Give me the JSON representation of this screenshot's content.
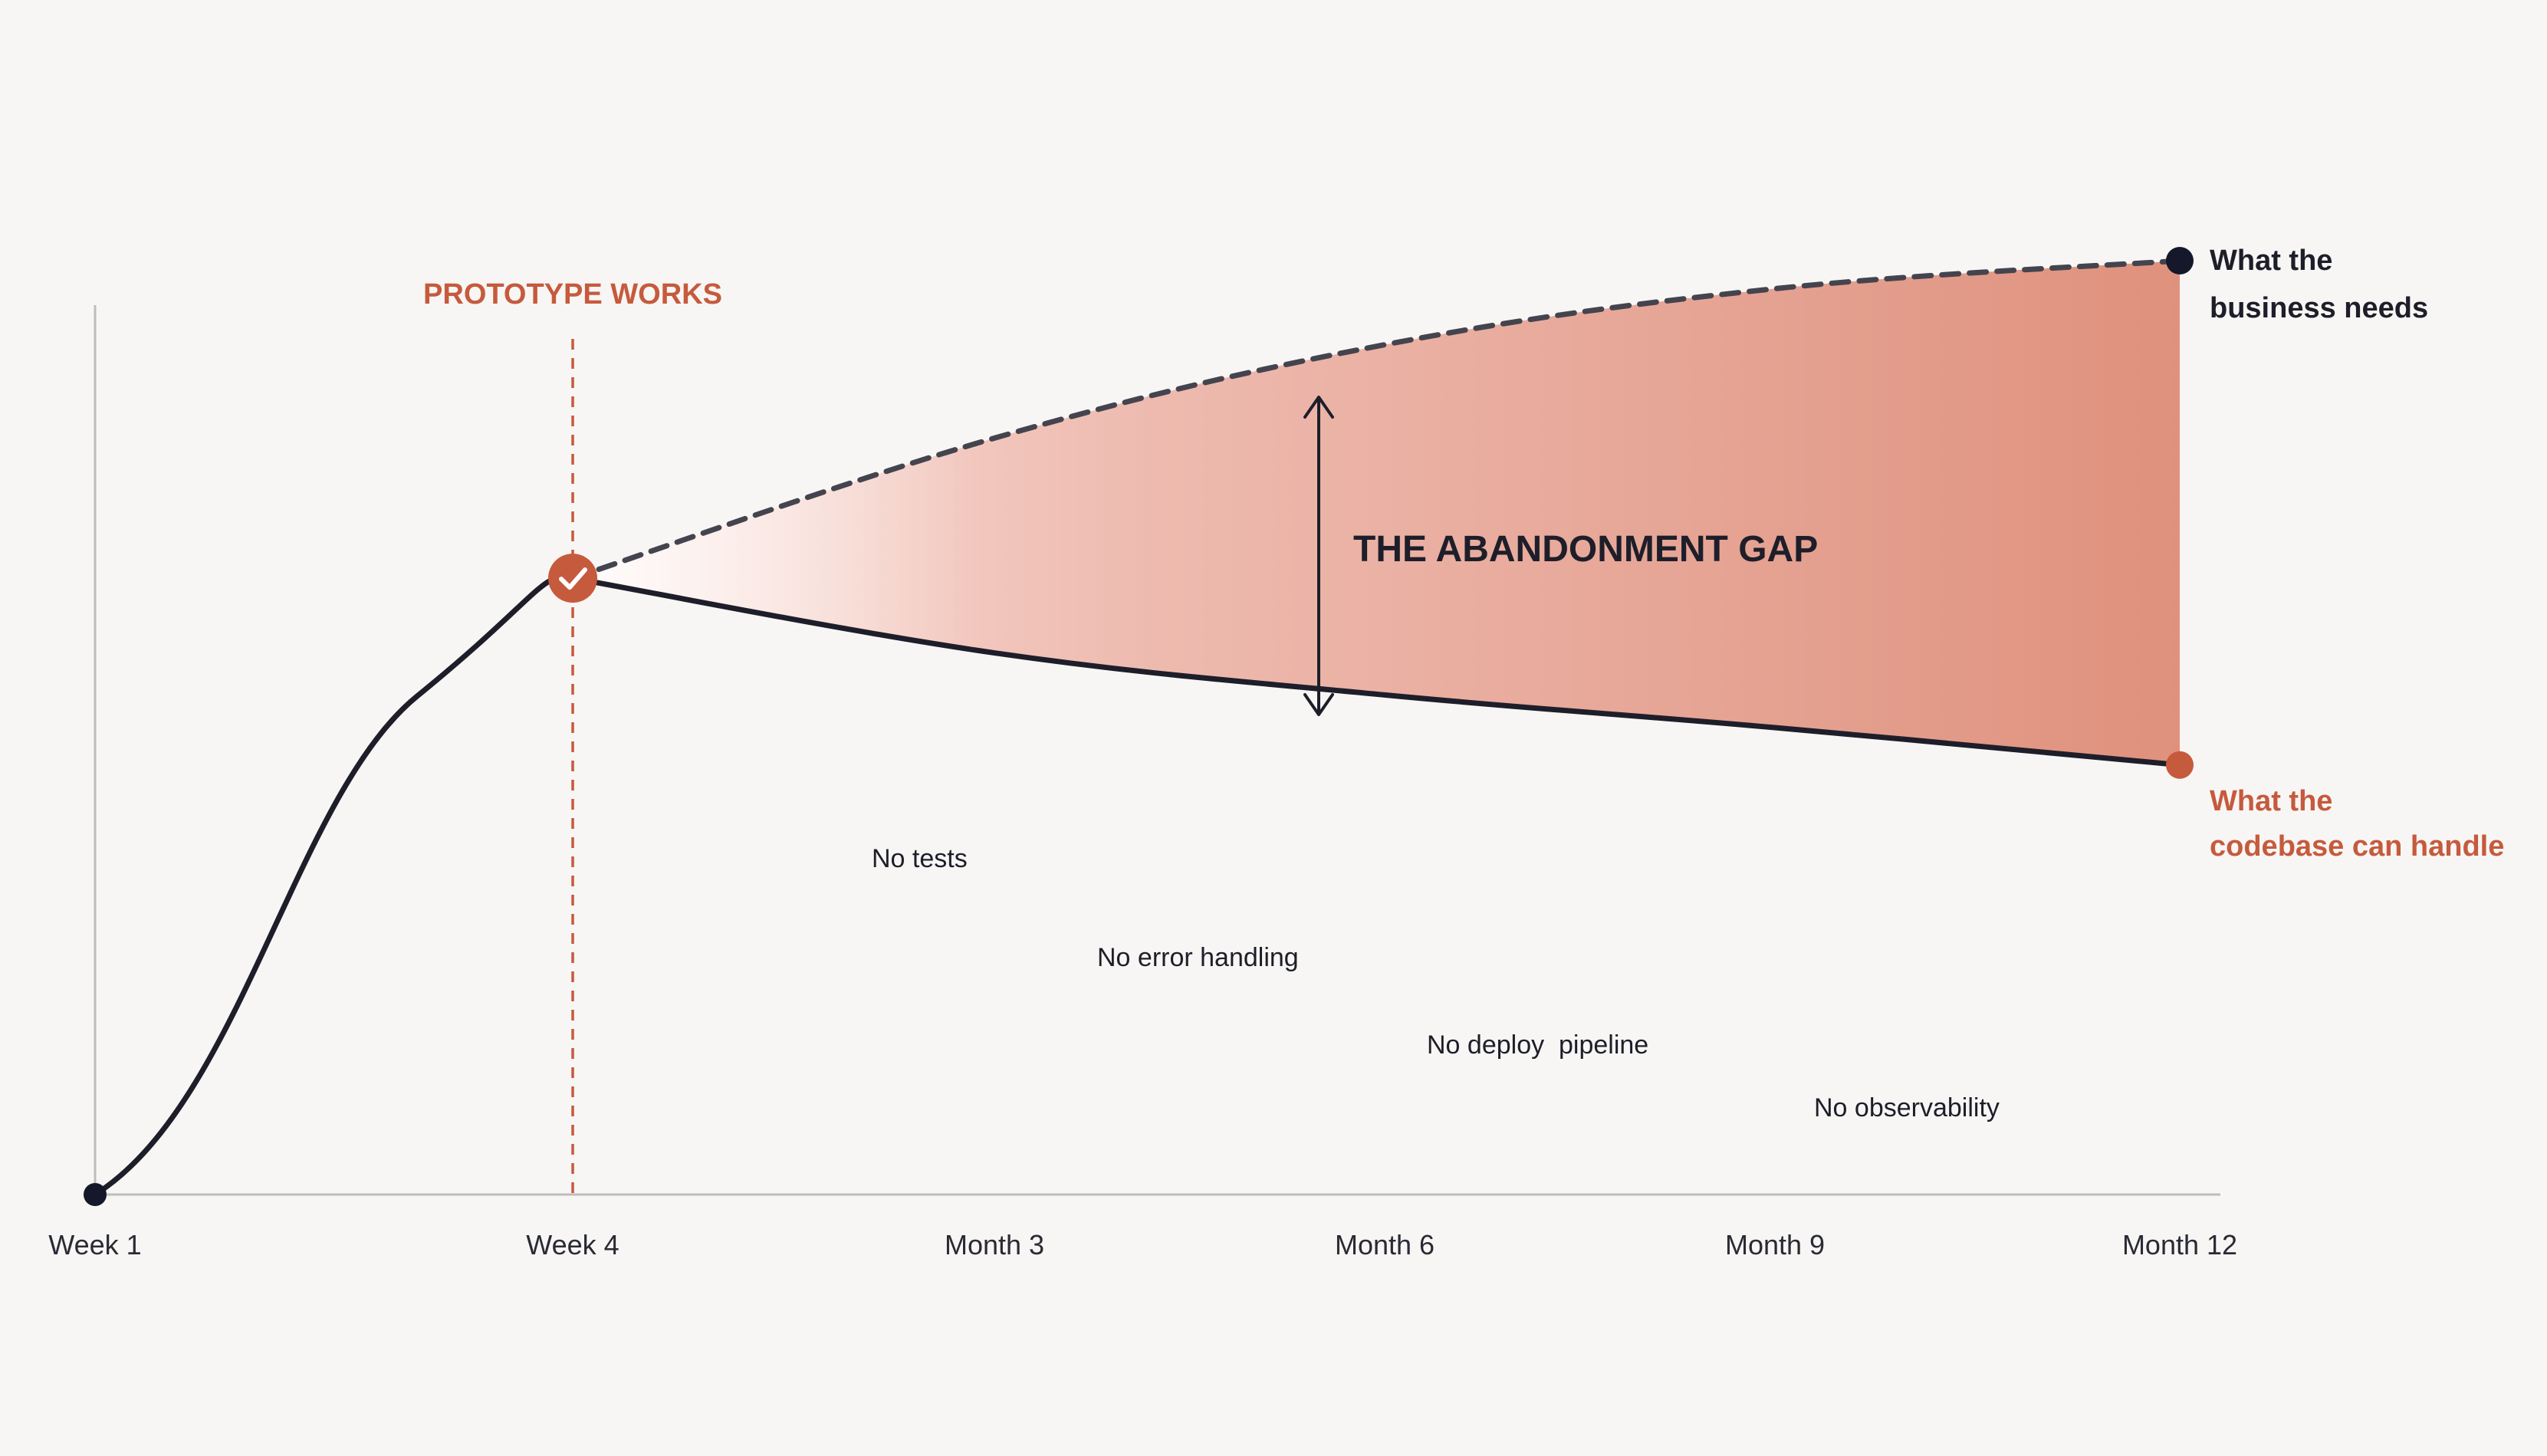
{
  "chart_data": {
    "type": "line",
    "title": "",
    "xlabel": "",
    "ylabel": "",
    "categories": [
      "Week 1",
      "Week 4",
      "Month 3",
      "Month 6",
      "Month 9",
      "Month 12"
    ],
    "grid": false,
    "colors": {
      "accent": "#c65a3d",
      "dark": "#1e1e2a",
      "dashed": "#44444f",
      "axis": "#bdbdbd",
      "fill_start": "#fbe5e0",
      "fill_end": "#df917d",
      "background": "#f7f6f4"
    },
    "series": [
      {
        "name": "What the business needs",
        "name_line1": "What the",
        "name_line2": "business needs",
        "style": "dashed",
        "x": [
          "Week 4",
          "Month 3",
          "Month 6",
          "Month 9",
          "Month 12"
        ],
        "values": [
          0.66,
          0.81,
          0.91,
          0.97,
          1.0
        ]
      },
      {
        "name": "What the codebase can handle",
        "name_line1": "What the",
        "name_line2": "codebase can handle",
        "style": "solid",
        "x": [
          "Week 1",
          "Week 4",
          "Month 3",
          "Month 6",
          "Month 9",
          "Month 12"
        ],
        "values": [
          0.0,
          0.66,
          0.58,
          0.535,
          0.5,
          0.46
        ]
      }
    ],
    "markers": {
      "prototype": {
        "label": "PROTOTYPE WORKS",
        "icon": "checkmark-icon"
      }
    },
    "gap": {
      "label": "THE ABANDONMENT GAP",
      "arrow_icon": "double-arrow-icon"
    },
    "annotations": [
      "No tests",
      "No error handling",
      "No deploy  pipeline",
      "No observability"
    ]
  }
}
